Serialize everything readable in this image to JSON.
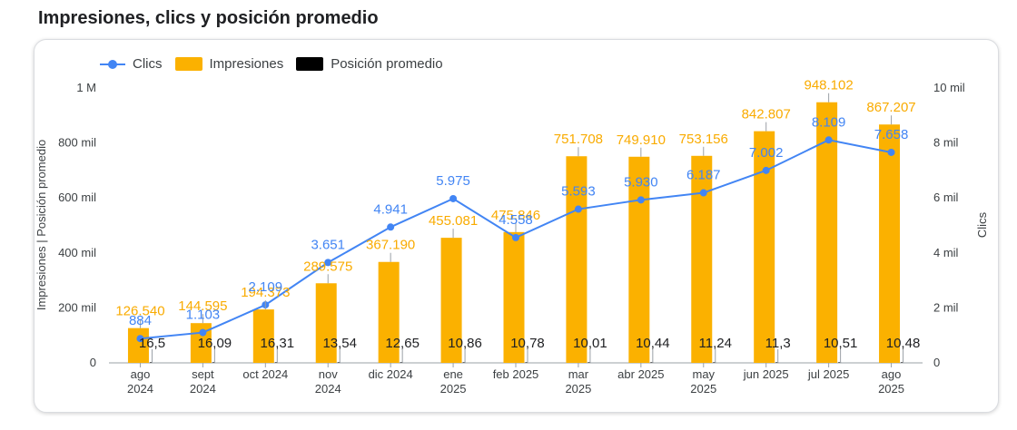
{
  "title": "Impresiones, clics y posición promedio",
  "colors": {
    "impresiones": "#fbb100",
    "clics": "#4285f4",
    "posicion": "#000000"
  },
  "legend": {
    "clics": "Clics",
    "impresiones": "Impresiones",
    "posicion": "Posición promedio"
  },
  "chart_data": {
    "type": "bar",
    "title": "Impresiones, clics y posición promedio",
    "categories": [
      [
        "ago",
        "2024"
      ],
      [
        "sept",
        "2024"
      ],
      [
        "oct 2024"
      ],
      [
        "nov",
        "2024"
      ],
      [
        "dic 2024"
      ],
      [
        "ene",
        "2025"
      ],
      [
        "feb 2025"
      ],
      [
        "mar",
        "2025"
      ],
      [
        "abr 2025"
      ],
      [
        "may",
        "2025"
      ],
      [
        "jun 2025"
      ],
      [
        "jul 2025"
      ],
      [
        "ago",
        "2025"
      ]
    ],
    "series": [
      {
        "name": "Impresiones",
        "type": "bar",
        "axis": "left",
        "values": [
          126540,
          144595,
          194373,
          289575,
          367190,
          455081,
          475846,
          751708,
          749910,
          753156,
          842807,
          948102,
          867207
        ],
        "labels": [
          "126.540",
          "144.595",
          "194.373",
          "289.575",
          "367.190",
          "455.081",
          "475.846",
          "751.708",
          "749.910",
          "753.156",
          "842.807",
          "948.102",
          "867.207"
        ]
      },
      {
        "name": "Clics",
        "type": "line",
        "axis": "right",
        "values": [
          884,
          1103,
          2109,
          3651,
          4941,
          5975,
          4558,
          5593,
          5930,
          6187,
          7002,
          8109,
          7658
        ],
        "labels": [
          "884",
          "1.103",
          "2.109",
          "3.651",
          "4.941",
          "5.975",
          "4.558",
          "5.593",
          "5.930",
          "6.187",
          "7.002",
          "8.109",
          "7.658"
        ]
      },
      {
        "name": "Posición promedio",
        "type": "bar",
        "axis": "left",
        "values": [
          16.5,
          16.09,
          16.31,
          13.54,
          12.65,
          10.86,
          10.78,
          10.01,
          10.44,
          11.24,
          11.3,
          10.51,
          10.48
        ],
        "labels": [
          "16,5",
          "16,09",
          "16,31",
          "13,54",
          "12,65",
          "10,86",
          "10,78",
          "10,01",
          "10,44",
          "11,24",
          "11,3",
          "10,51",
          "10,48"
        ]
      }
    ],
    "left_axis": {
      "title": "Impresiones | Posición promedio",
      "ylim": [
        0,
        1000000
      ],
      "ticks": [
        0,
        200000,
        400000,
        600000,
        800000,
        1000000
      ],
      "tick_labels": [
        "0",
        "200 mil",
        "400 mil",
        "600 mil",
        "800 mil",
        "1 M"
      ]
    },
    "right_axis": {
      "title": "Clics",
      "ylim": [
        0,
        10000
      ],
      "ticks": [
        0,
        2000,
        4000,
        6000,
        8000,
        10000
      ],
      "tick_labels": [
        "0",
        "2 mil",
        "4 mil",
        "6 mil",
        "8 mil",
        "10 mil"
      ]
    },
    "legend_position": "top-left",
    "grid": false
  }
}
